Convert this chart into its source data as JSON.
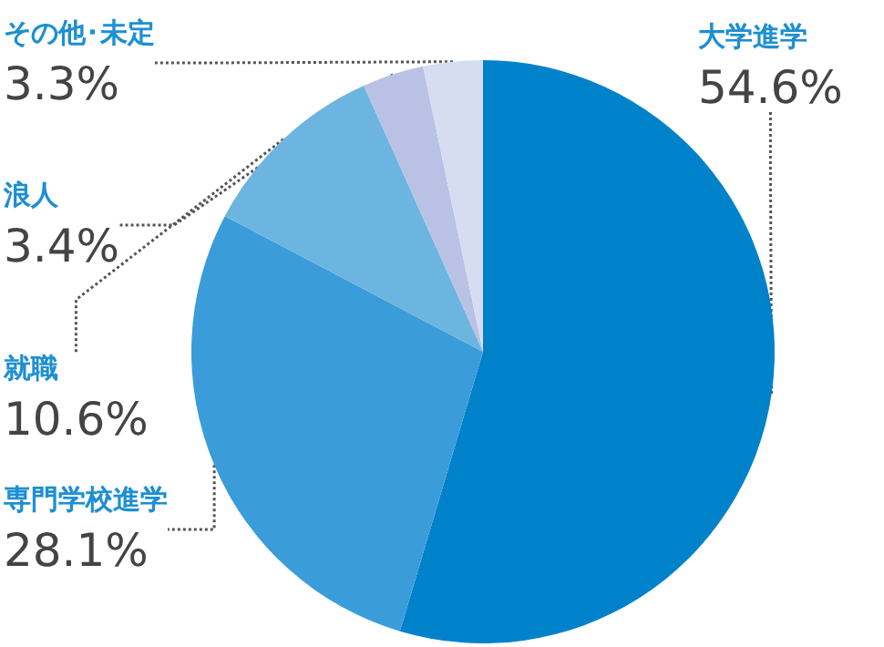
{
  "chart_data": {
    "type": "pie",
    "categories": [
      "大学進学",
      "専門学校進学",
      "就職",
      "浪人",
      "その他･未定"
    ],
    "values": [
      54.6,
      28.1,
      10.6,
      3.4,
      3.3
    ],
    "value_labels": [
      "54.6%",
      "28.1%",
      "10.6%",
      "3.4%",
      "3.3%"
    ],
    "colors": [
      "#0082cb",
      "#3a9cd9",
      "#6cb5e0",
      "#b9c2e4",
      "#d6ddf1"
    ],
    "legend": false
  }
}
